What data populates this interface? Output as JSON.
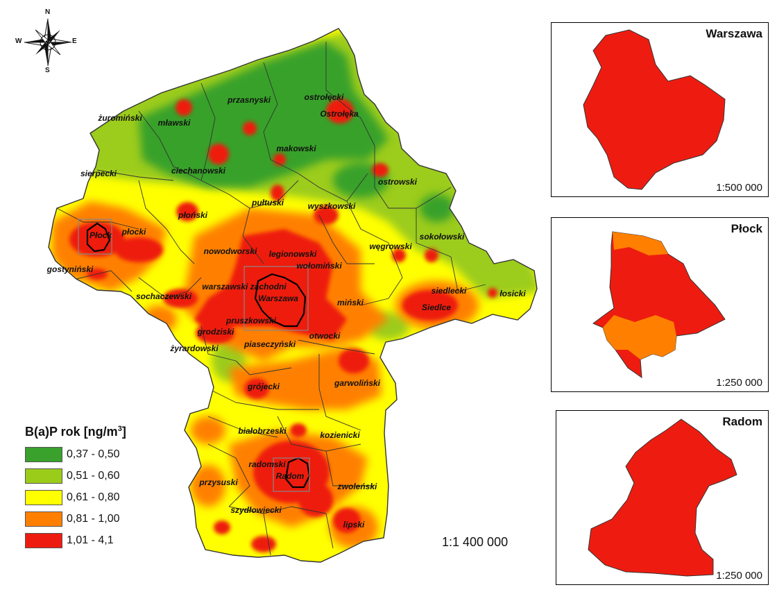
{
  "compass": {
    "n": "N",
    "s": "S",
    "e": "E",
    "w": "W"
  },
  "legend": {
    "title_main": "B(a)P rok [ng/m",
    "title_sup": "3",
    "title_end": "]",
    "items": [
      {
        "label": "0,37 - 0,50",
        "color": "#39a12c"
      },
      {
        "label": "0,51 - 0,60",
        "color": "#9ccc1a"
      },
      {
        "label": "0,61 - 0,80",
        "color": "#ffff00"
      },
      {
        "label": "0,81 - 1,00",
        "color": "#ff8000"
      },
      {
        "label": "1,01 - 4,1",
        "color": "#ee1c10"
      }
    ]
  },
  "main_scale": "1:1 400 000",
  "districts": [
    "żuromiński",
    "mławski",
    "przasnyski",
    "ostrołęcki",
    "Ostrołęka",
    "makowski",
    "sierpecki",
    "ciechanowski",
    "ostrowski",
    "płoński",
    "pułtuski",
    "wyszkowski",
    "płocki",
    "Płock",
    "sokołowski",
    "węgrowski",
    "gostyniński",
    "nowodworski",
    "legionowski",
    "wołomiński",
    "warszawski zachodni",
    "Warszawa",
    "siedlecki",
    "łosicki",
    "Siedlce",
    "sochaczewski",
    "miński",
    "pruszkowski",
    "grodziski",
    "otwocki",
    "piaseczyński",
    "żyrardowski",
    "grójecki",
    "garwoliński",
    "białobrzeski",
    "kozienicki",
    "radomski",
    "Radom",
    "przysuski",
    "zwoleński",
    "szydłowiecki",
    "lipski"
  ],
  "insets": [
    {
      "title": "Warszawa",
      "scale": "1:500 000"
    },
    {
      "title": "Płock",
      "scale": "1:250 000"
    },
    {
      "title": "Radom",
      "scale": "1:250 000"
    }
  ]
}
